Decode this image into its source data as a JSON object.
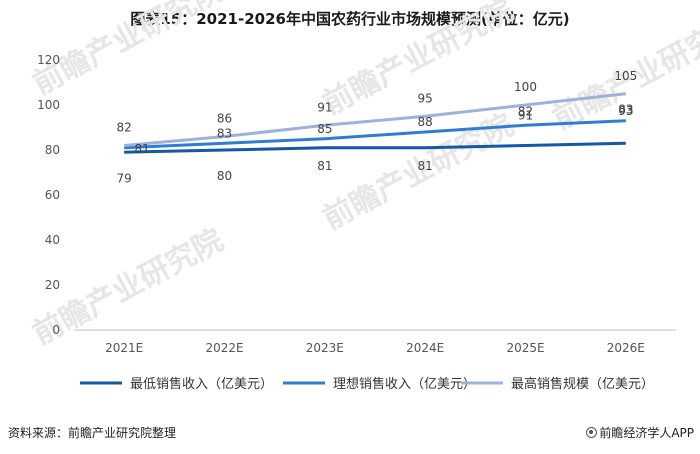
{
  "title": "图表15：2021-2026年中国农药行业市场规模预测(单位：亿元)",
  "source": "资料来源：前瞻产业研究院整理",
  "brand": "前瞻经济学人APP",
  "colors": {
    "low": "#1558a6",
    "ideal": "#2f7dd1",
    "high": "#9db1dc",
    "grid": "#dddddd"
  },
  "chart_data": {
    "type": "line",
    "categories": [
      "2021E",
      "2022E",
      "2023E",
      "2024E",
      "2025E",
      "2026E"
    ],
    "ylim": [
      0,
      120
    ],
    "yticks": [
      0,
      20,
      40,
      60,
      80,
      100,
      120
    ],
    "grid": false,
    "legend_position": "bottom",
    "series": [
      {
        "name": "最低销售收入（亿美元）",
        "values": [
          79,
          80,
          81,
          81,
          82,
          83
        ]
      },
      {
        "name": "理想销售收入（亿美元）",
        "values": [
          81,
          83,
          85,
          88,
          91,
          93
        ]
      },
      {
        "name": "最高销售规模（亿美元）",
        "values": [
          82,
          86,
          91,
          95,
          100,
          105
        ]
      }
    ]
  },
  "watermark": "前瞻产业研究院"
}
